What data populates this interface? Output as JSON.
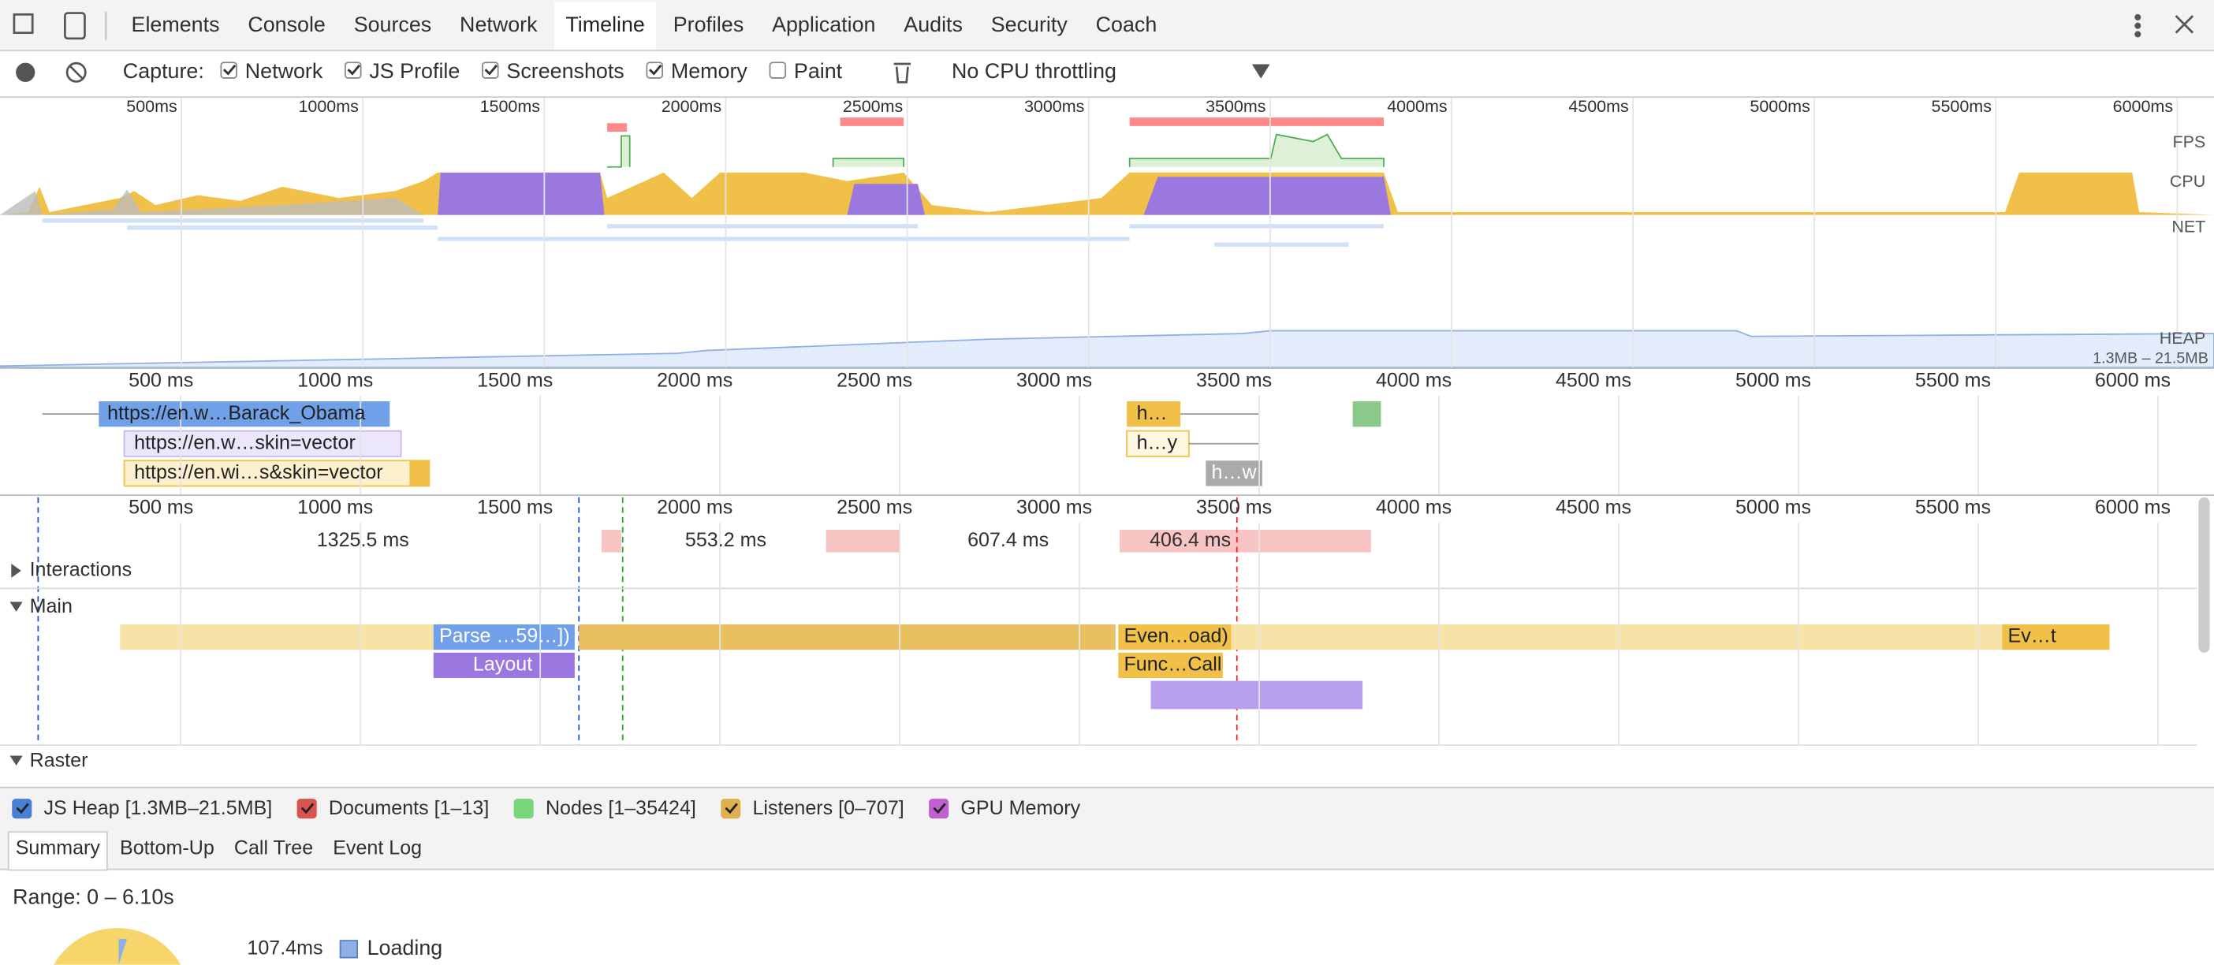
{
  "toolbar": {
    "tabs": [
      "Elements",
      "Console",
      "Sources",
      "Network",
      "Timeline",
      "Profiles",
      "Application",
      "Audits",
      "Security",
      "Coach"
    ],
    "active_tab": 4
  },
  "capture": {
    "label": "Capture:",
    "options": [
      {
        "label": "Network",
        "checked": true
      },
      {
        "label": "JS Profile",
        "checked": true
      },
      {
        "label": "Screenshots",
        "checked": true
      },
      {
        "label": "Memory",
        "checked": true
      },
      {
        "label": "Paint",
        "checked": false
      }
    ],
    "throttling": "No CPU throttling"
  },
  "overview": {
    "ticks": [
      "500ms",
      "1000ms",
      "1500ms",
      "2000ms",
      "2500ms",
      "3000ms",
      "3500ms",
      "4000ms",
      "4500ms",
      "5000ms",
      "5500ms",
      "6000ms"
    ],
    "tracks": [
      "FPS",
      "CPU",
      "NET",
      "HEAP"
    ],
    "heap_range": "1.3MB – 21.5MB"
  },
  "network": {
    "ticks": [
      "500 ms",
      "1000 ms",
      "1500 ms",
      "2000 ms",
      "2500 ms",
      "3000 ms",
      "3500 ms",
      "4000 ms",
      "4500 ms",
      "5000 ms",
      "5500 ms",
      "6000 ms"
    ],
    "requests": [
      "https://en.w…Barack_Obama",
      "https://en.w…skin=vector",
      "https://en.wi…s&skin=vector",
      "h…",
      "h…y",
      "h…w"
    ]
  },
  "frames": {
    "ticks": [
      "500 ms",
      "1000 ms",
      "1500 ms",
      "2000 ms",
      "2500 ms",
      "3000 ms",
      "3500 ms",
      "4000 ms",
      "4500 ms",
      "5000 ms",
      "5500 ms",
      "6000 ms"
    ],
    "durations": [
      "1325.5 ms",
      "553.2 ms",
      "607.4 ms",
      "406.4 ms"
    ]
  },
  "sections": [
    "Interactions",
    "Main",
    "Raster"
  ],
  "main_events": [
    "Parse …59…])",
    "Layout",
    "Even…oad)",
    "Func…Call",
    "Ev…t"
  ],
  "counters": [
    {
      "label": "JS Heap [1.3MB–21.5MB]",
      "color": "#4a7fd6",
      "checked": true
    },
    {
      "label": "Documents [1–13]",
      "color": "#d9534f",
      "checked": true
    },
    {
      "label": "Nodes [1–35424]",
      "color": "#7ad67a",
      "checked": false
    },
    {
      "label": "Listeners [0–707]",
      "color": "#e0b050",
      "checked": true
    },
    {
      "label": "GPU Memory",
      "color": "#c060d0",
      "checked": true
    }
  ],
  "detail_tabs": [
    "Summary",
    "Bottom-Up",
    "Call Tree",
    "Event Log"
  ],
  "summary": {
    "range": "Range: 0 – 6.10s",
    "rows": [
      {
        "time": "107.4ms",
        "label": "Loading",
        "color": "#8fb0e6"
      }
    ]
  }
}
